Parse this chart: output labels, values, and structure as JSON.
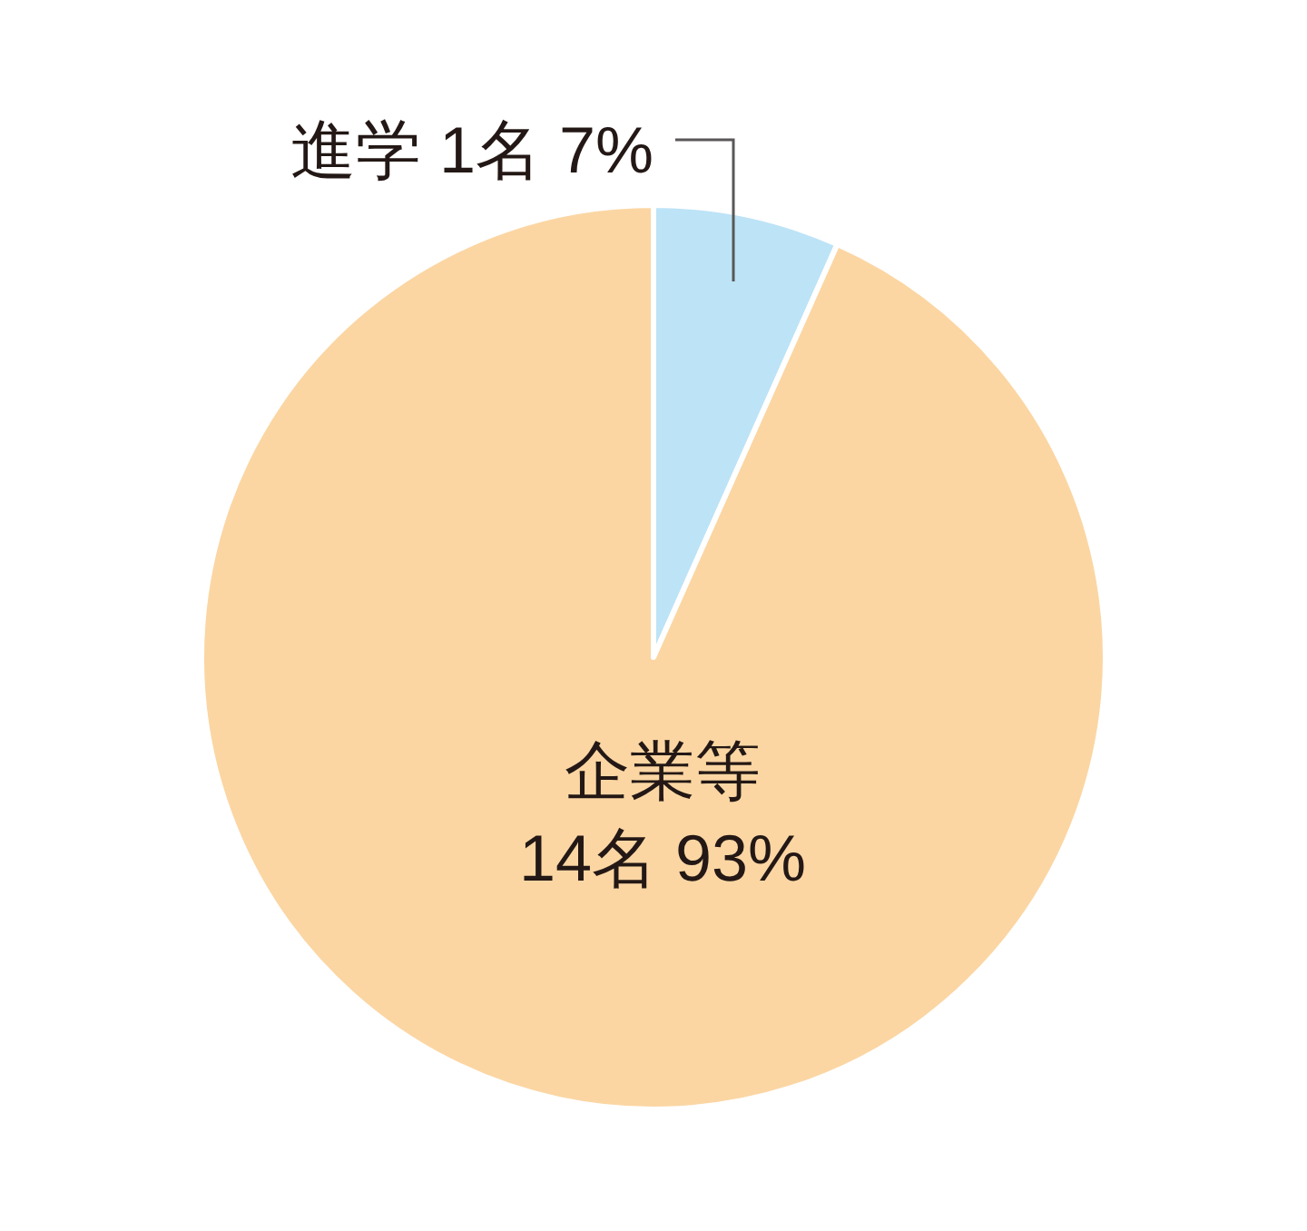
{
  "chart_data": {
    "type": "pie",
    "categories": [
      "進学",
      "企業等"
    ],
    "values": [
      1,
      14
    ],
    "value_labels": [
      "1名 7%",
      "14名 93%"
    ],
    "colors": [
      "#bde3f7",
      "#fbd6a3"
    ]
  }
}
